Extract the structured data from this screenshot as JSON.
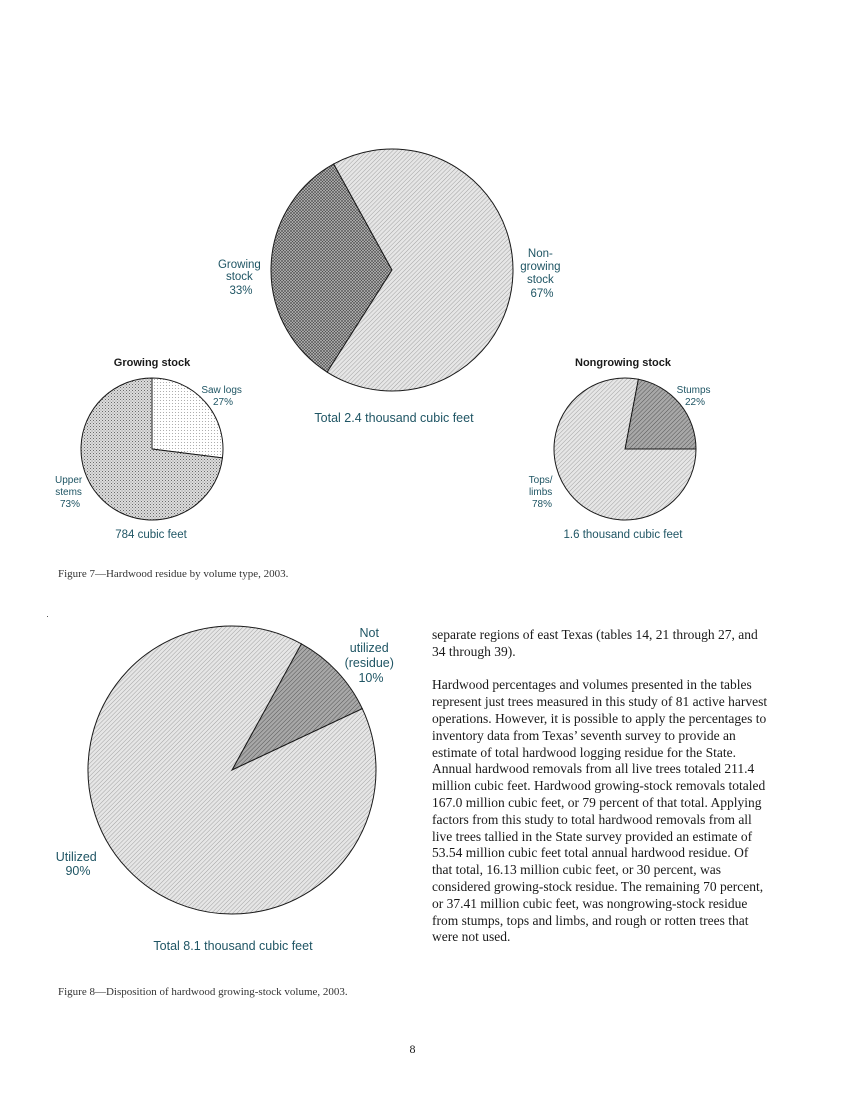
{
  "figure7": {
    "caption": "Figure 7—Hardwood residue by volume type, 2003."
  },
  "figure8": {
    "caption": "Figure 8—Disposition of hardwood growing-stock volume, 2003."
  },
  "body_paragraphs": [
    "separate regions of east Texas (tables 14, 21 through 27, and 34 through 39).",
    "Hardwood percentages and volumes presented in the tables represent just trees measured in this study of 81 active harvest operations. However, it is possible to apply the percentages to inventory data from Texas’ seventh survey to provide an estimate of total hardwood logging residue for the State. Annual hardwood removals from all live trees totaled 211.4 million cubic feet. Hardwood growing-stock removals totaled 167.0 million cubic feet, or 79 percent of that total. Applying factors from this study to total hardwood removals from all live trees tallied in the State survey provided an estimate of 53.54 million cubic feet total annual hardwood residue. Of that total, 16.13 million cubic feet, or 30 percent, was considered growing-stock residue. The remaining 70 percent, or 37.41 million cubic feet, was nongrowing-stock residue from stumps, tops and limbs, and rough or rotten trees that were not used."
  ],
  "page_number": "8",
  "chart_data": [
    {
      "type": "pie",
      "title": "",
      "total_label": "Total 2.4 thousand cubic feet",
      "slices": [
        {
          "label": [
            "Growing",
            "stock"
          ],
          "value": 33,
          "value_label": "33%",
          "pattern": "crosshatch-dark"
        },
        {
          "label": [
            "Non-",
            "growing",
            "stock"
          ],
          "value": 67,
          "value_label": "67%",
          "pattern": "diagonal-light"
        }
      ]
    },
    {
      "type": "pie",
      "title": "Growing stock",
      "total_label": "784 cubic feet",
      "slices": [
        {
          "label": [
            "Saw logs"
          ],
          "value": 27,
          "value_label": "27%",
          "pattern": "dots-light"
        },
        {
          "label": [
            "Upper",
            "stems"
          ],
          "value": 73,
          "value_label": "73%",
          "pattern": "grid-fine"
        }
      ]
    },
    {
      "type": "pie",
      "title": "Nongrowing stock",
      "total_label": "1.6 thousand cubic feet",
      "slices": [
        {
          "label": [
            "Stumps"
          ],
          "value": 22,
          "value_label": "22%",
          "pattern": "diagonal-dark"
        },
        {
          "label": [
            "Tops/",
            "limbs"
          ],
          "value": 78,
          "value_label": "78%",
          "pattern": "diagonal-light"
        }
      ]
    },
    {
      "type": "pie",
      "title": "",
      "total_label": "Total 8.1 thousand cubic feet",
      "slices": [
        {
          "label": [
            "Not",
            "utilized",
            "(residue)"
          ],
          "value": 10,
          "value_label": "10%",
          "pattern": "diagonal-dark"
        },
        {
          "label": [
            "Utilized"
          ],
          "value": 90,
          "value_label": "90%",
          "pattern": "diagonal-light"
        }
      ]
    }
  ],
  "colors": {
    "label_text": "#1f5564",
    "outline": "#1a1a1a",
    "background": "#ffffff"
  }
}
